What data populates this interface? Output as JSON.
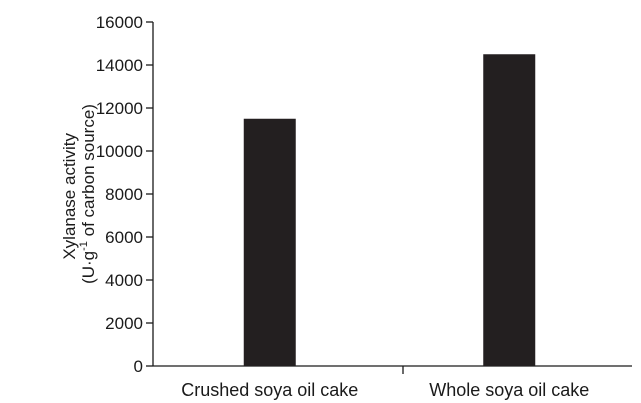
{
  "chart_data": {
    "type": "bar",
    "categories": [
      "Crushed soya oil cake",
      "Whole soya oil cake"
    ],
    "values": [
      11500,
      14500
    ],
    "title": "",
    "xlabel": "",
    "ylabel_line1": "Xylanase activity",
    "ylabel_line2_prefix": "(U·g",
    "ylabel_line2_sup": "-1",
    "ylabel_line2_suffix": " of carbon source)",
    "ylim": [
      0,
      16000
    ],
    "yticks": [
      "0",
      "2000",
      "4000",
      "6000",
      "8000",
      "10000",
      "12000",
      "14000",
      "16000"
    ],
    "grid": false,
    "legend": "none",
    "bar_color": "#231f20"
  }
}
